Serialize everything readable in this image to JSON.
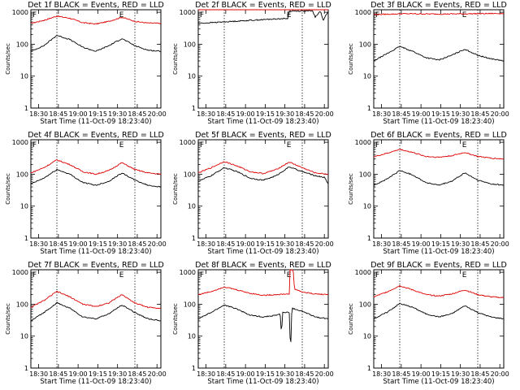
{
  "figure": {
    "xticks": [
      "18:30",
      "18:45",
      "19:00",
      "19:15",
      "19:30",
      "18:45",
      "20:00"
    ],
    "colors": {
      "events": "#000000",
      "lld": "#e00000",
      "frame": "#000000",
      "background": "#ffffff"
    }
  },
  "chart_data": [
    {
      "type": "line",
      "title": "Det 1f BLACK = Events, RED = LLD",
      "xlabel": "Start Time (11-Oct-09 18:23:40)",
      "ylabel": "Counts/sec",
      "ylog": true,
      "ylim": [
        1,
        1200
      ],
      "yticks": [
        "1",
        "10",
        "100",
        "1000"
      ],
      "xticks": [
        "18:30",
        "18:45",
        "19:00",
        "19:15",
        "19:30",
        "18:45",
        "20:00"
      ],
      "flags": [
        {
          "label": "F",
          "x": 0.0
        },
        {
          "label": "E",
          "x": 0.667
        }
      ],
      "markers": [
        0.2,
        0.8
      ],
      "series": [
        {
          "color": "#e00000",
          "x": [
            0,
            0.1,
            0.2,
            0.3,
            0.4,
            0.5,
            0.6,
            0.7,
            0.8,
            0.9,
            1.0
          ],
          "y": [
            450,
            560,
            760,
            650,
            470,
            430,
            520,
            700,
            520,
            460,
            450
          ]
        },
        {
          "color": "#000000",
          "x": [
            0,
            0.1,
            0.2,
            0.3,
            0.4,
            0.5,
            0.6,
            0.7,
            0.8,
            0.9,
            1.0
          ],
          "y": [
            60,
            90,
            190,
            140,
            80,
            60,
            90,
            150,
            90,
            65,
            60
          ]
        }
      ]
    },
    {
      "type": "line",
      "title": "Det 2f BLACK = Events, RED = LLD",
      "xlabel": "Start Time (11-Oct-09 18:23:40)",
      "ylabel": "Counts/sec",
      "ylog": true,
      "ylim": [
        1,
        1200
      ],
      "yticks": [
        "1",
        "10",
        "100",
        "1000"
      ],
      "xticks": [
        "18:30",
        "18:45",
        "19:00",
        "19:15",
        "19:30",
        "18:45",
        "20:00"
      ],
      "flags": [
        {
          "label": "F",
          "x": 0.0
        },
        {
          "label": "E",
          "x": 0.667
        }
      ],
      "markers": [
        0.2,
        0.8
      ],
      "series": [
        {
          "color": "#e00000",
          "x": [
            0,
            0.2,
            0.4,
            0.6,
            0.69,
            0.7,
            0.8,
            0.9,
            1.0
          ],
          "y": [
            1400,
            1450,
            1500,
            1550,
            1580,
            1700,
            1650,
            1550,
            1600
          ]
        },
        {
          "color": "#000000",
          "x": [
            0,
            0.2,
            0.4,
            0.6,
            0.69,
            0.7,
            0.8,
            0.88,
            0.9,
            0.94,
            0.96,
            1.0
          ],
          "y": [
            450,
            500,
            560,
            620,
            640,
            1100,
            1100,
            1100,
            700,
            1100,
            550,
            1100
          ]
        }
      ]
    },
    {
      "type": "line",
      "title": "Det 3f BLACK = Events, RED = LLD",
      "xlabel": "Start Time (11-Oct-09 18:23:40)",
      "ylabel": "Counts/sec",
      "ylog": true,
      "ylim": [
        1,
        1200
      ],
      "yticks": [
        "1",
        "10",
        "100",
        "1000"
      ],
      "xticks": [
        "18:30",
        "18:45",
        "19:00",
        "19:15",
        "19:30",
        "18:45",
        "20:00"
      ],
      "flags": [
        {
          "label": "F",
          "x": 0.0
        },
        {
          "label": "E",
          "x": 0.667
        }
      ],
      "markers": [
        0.2,
        0.8
      ],
      "series": [
        {
          "color": "#e00000",
          "x": [
            0,
            0.25,
            0.5,
            0.75,
            1.0
          ],
          "y": [
            850,
            900,
            880,
            900,
            920
          ]
        },
        {
          "color": "#000000",
          "x": [
            0,
            0.1,
            0.2,
            0.3,
            0.4,
            0.5,
            0.6,
            0.7,
            0.8,
            0.9,
            1.0
          ],
          "y": [
            30,
            50,
            85,
            60,
            38,
            32,
            45,
            70,
            45,
            35,
            30
          ]
        }
      ]
    },
    {
      "type": "line",
      "title": "Det 4f BLACK = Events, RED = LLD",
      "xlabel": "Start Time (11-Oct-09 18:23:40)",
      "ylabel": "Counts/sec",
      "ylog": true,
      "ylim": [
        1,
        1200
      ],
      "yticks": [
        "1",
        "10",
        "100",
        "1000"
      ],
      "xticks": [
        "18:30",
        "18:45",
        "19:00",
        "19:15",
        "19:30",
        "18:45",
        "20:00"
      ],
      "flags": [
        {
          "label": "F",
          "x": 0.0
        },
        {
          "label": "E",
          "x": 0.667
        }
      ],
      "markers": [
        0.2,
        0.8
      ],
      "series": [
        {
          "color": "#e00000",
          "x": [
            0,
            0.1,
            0.2,
            0.3,
            0.4,
            0.5,
            0.6,
            0.7,
            0.8,
            0.9,
            1.0
          ],
          "y": [
            110,
            160,
            280,
            200,
            120,
            100,
            130,
            230,
            140,
            110,
            100
          ]
        },
        {
          "color": "#000000",
          "x": [
            0,
            0.1,
            0.2,
            0.3,
            0.4,
            0.5,
            0.6,
            0.7,
            0.8,
            0.9,
            1.0
          ],
          "y": [
            50,
            75,
            140,
            100,
            55,
            45,
            60,
            110,
            65,
            45,
            40
          ]
        }
      ]
    },
    {
      "type": "line",
      "title": "Det 5f BLACK = Events, RED = LLD",
      "xlabel": "Start Time (11-Oct-09 18:23:40)",
      "ylabel": "Counts/sec",
      "ylog": true,
      "ylim": [
        1,
        1200
      ],
      "yticks": [
        "1",
        "10",
        "100",
        "1000"
      ],
      "xticks": [
        "18:30",
        "18:45",
        "19:00",
        "19:15",
        "19:30",
        "18:45",
        "20:00"
      ],
      "flags": [
        {
          "label": "F",
          "x": 0.0
        },
        {
          "label": "E",
          "x": 0.667
        }
      ],
      "markers": [
        0.2,
        0.8
      ],
      "series": [
        {
          "color": "#e00000",
          "x": [
            0,
            0.1,
            0.2,
            0.3,
            0.4,
            0.5,
            0.6,
            0.7,
            0.8,
            0.9,
            1.0
          ],
          "y": [
            110,
            160,
            250,
            180,
            120,
            105,
            140,
            240,
            160,
            110,
            100
          ]
        },
        {
          "color": "#000000",
          "x": [
            0,
            0.1,
            0.2,
            0.3,
            0.4,
            0.5,
            0.6,
            0.7,
            0.8,
            0.9,
            0.97,
            1.0
          ],
          "y": [
            60,
            90,
            160,
            120,
            75,
            65,
            90,
            170,
            120,
            90,
            80,
            50
          ]
        }
      ]
    },
    {
      "type": "line",
      "title": "Det 6f BLACK = Events, RED = LLD",
      "xlabel": "Start Time (11-Oct-09 18:23:40)",
      "ylabel": "Counts/sec",
      "ylog": true,
      "ylim": [
        1,
        1200
      ],
      "yticks": [
        "1",
        "10",
        "100",
        "1000"
      ],
      "xticks": [
        "18:30",
        "18:45",
        "19:00",
        "19:15",
        "19:30",
        "18:45",
        "20:00"
      ],
      "flags": [
        {
          "label": "F",
          "x": 0.0
        },
        {
          "label": "E",
          "x": 0.667
        }
      ],
      "markers": [
        0.2,
        0.8
      ],
      "series": [
        {
          "color": "#e00000",
          "x": [
            0,
            0.1,
            0.2,
            0.3,
            0.4,
            0.5,
            0.6,
            0.7,
            0.8,
            0.9,
            1.0
          ],
          "y": [
            350,
            450,
            600,
            480,
            360,
            340,
            380,
            480,
            360,
            320,
            300
          ]
        },
        {
          "color": "#000000",
          "x": [
            0,
            0.1,
            0.2,
            0.3,
            0.4,
            0.5,
            0.6,
            0.7,
            0.8,
            0.9,
            1.0
          ],
          "y": [
            45,
            70,
            130,
            95,
            55,
            45,
            60,
            110,
            65,
            50,
            45
          ]
        }
      ]
    },
    {
      "type": "line",
      "title": "Det 7f BLACK = Events, RED = LLD",
      "xlabel": "Start Time (11-Oct-09 18:23:40)",
      "ylabel": "Counts/sec",
      "ylog": true,
      "ylim": [
        1,
        1200
      ],
      "yticks": [
        "1",
        "10",
        "100",
        "1000"
      ],
      "xticks": [
        "18:30",
        "18:45",
        "19:00",
        "19:15",
        "19:30",
        "18:45",
        "20:00"
      ],
      "flags": [
        {
          "label": "F",
          "x": 0.0
        },
        {
          "label": "E",
          "x": 0.667
        }
      ],
      "markers": [
        0.2,
        0.8
      ],
      "series": [
        {
          "color": "#e00000",
          "x": [
            0,
            0.1,
            0.2,
            0.3,
            0.4,
            0.5,
            0.6,
            0.7,
            0.8,
            0.9,
            1.0
          ],
          "y": [
            80,
            130,
            250,
            170,
            100,
            85,
            110,
            200,
            110,
            80,
            75
          ]
        },
        {
          "color": "#000000",
          "x": [
            0,
            0.1,
            0.2,
            0.3,
            0.4,
            0.5,
            0.6,
            0.7,
            0.8,
            0.9,
            1.0
          ],
          "y": [
            30,
            55,
            110,
            75,
            40,
            35,
            50,
            95,
            55,
            35,
            30
          ]
        }
      ]
    },
    {
      "type": "line",
      "title": "Det 8f BLACK = Events, RED = LLD",
      "xlabel": "Start Time (11-Oct-09 18:23:40)",
      "ylabel": "Counts/sec",
      "ylog": true,
      "ylim": [
        1,
        1200
      ],
      "yticks": [
        "1",
        "10",
        "100",
        "1000"
      ],
      "xticks": [
        "18:30",
        "18:45",
        "19:00",
        "19:15",
        "19:30",
        "18:45",
        "20:00"
      ],
      "flags": [
        {
          "label": "F",
          "x": 0.0
        },
        {
          "label": "E",
          "x": 0.667
        }
      ],
      "markers": [
        0.2,
        0.8
      ],
      "series": [
        {
          "color": "#e00000",
          "x": [
            0,
            0.1,
            0.2,
            0.3,
            0.4,
            0.5,
            0.6,
            0.7,
            0.701,
            0.705,
            0.73,
            0.74,
            0.8,
            0.9,
            1.0
          ],
          "y": [
            200,
            250,
            350,
            280,
            220,
            190,
            200,
            210,
            1200,
            1200,
            1200,
            300,
            240,
            210,
            200
          ]
        },
        {
          "color": "#000000",
          "x": [
            0,
            0.1,
            0.2,
            0.3,
            0.4,
            0.5,
            0.6,
            0.63,
            0.64,
            0.65,
            0.7,
            0.71,
            0.72,
            0.8,
            0.9,
            1.0
          ],
          "y": [
            35,
            55,
            95,
            70,
            45,
            40,
            45,
            50,
            12,
            55,
            55,
            3,
            75,
            60,
            40,
            35
          ]
        }
      ]
    },
    {
      "type": "line",
      "title": "Det 9f BLACK = Events, RED = LLD",
      "xlabel": "Start Time (11-Oct-09 18:23:40)",
      "ylabel": "Counts/sec",
      "ylog": true,
      "ylim": [
        1,
        1200
      ],
      "yticks": [
        "1",
        "10",
        "100",
        "1000"
      ],
      "xticks": [
        "18:30",
        "18:45",
        "19:00",
        "19:15",
        "19:30",
        "18:45",
        "20:00"
      ],
      "flags": [
        {
          "label": "F",
          "x": 0.0
        },
        {
          "label": "E",
          "x": 0.667
        }
      ],
      "markers": [
        0.2,
        0.8
      ],
      "series": [
        {
          "color": "#e00000",
          "x": [
            0,
            0.1,
            0.2,
            0.3,
            0.4,
            0.5,
            0.6,
            0.7,
            0.8,
            0.9,
            1.0
          ],
          "y": [
            170,
            240,
            380,
            280,
            200,
            180,
            210,
            280,
            200,
            170,
            160
          ]
        },
        {
          "color": "#000000",
          "x": [
            0,
            0.1,
            0.2,
            0.3,
            0.4,
            0.5,
            0.6,
            0.7,
            0.8,
            0.9,
            1.0
          ],
          "y": [
            35,
            55,
            105,
            80,
            50,
            40,
            50,
            90,
            55,
            40,
            35
          ]
        }
      ]
    }
  ]
}
